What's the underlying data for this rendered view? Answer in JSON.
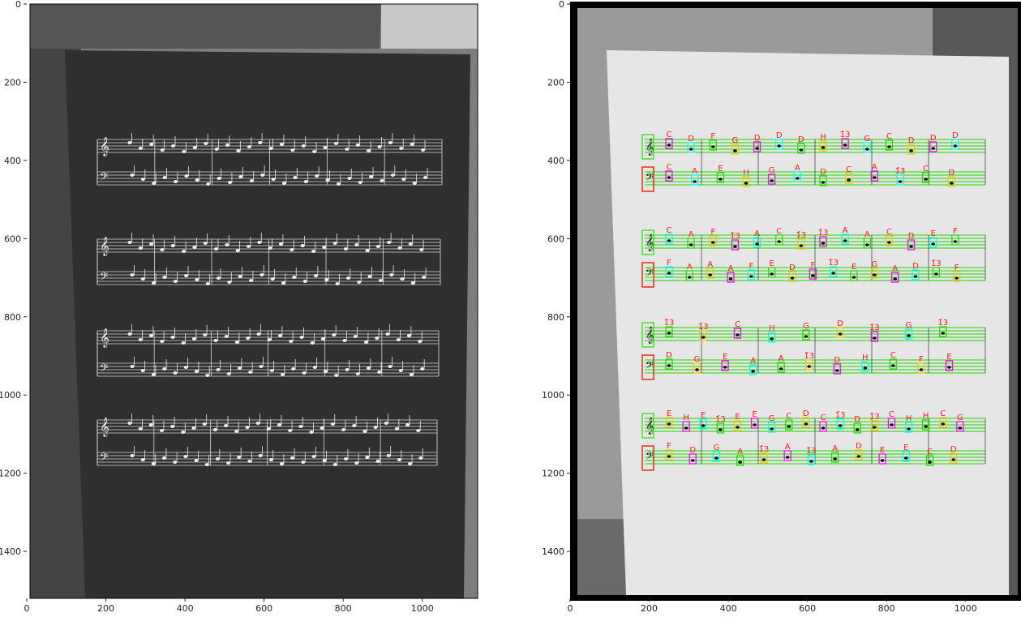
{
  "panels": [
    {
      "id": "input",
      "xticks": [
        "0",
        "200",
        "400",
        "600",
        "800",
        "1000"
      ],
      "yticks": [
        "0",
        "200",
        "400",
        "600",
        "800",
        "1000",
        "1200",
        "1400"
      ]
    },
    {
      "id": "detected",
      "xticks": [
        "0",
        "200",
        "400",
        "600",
        "800",
        "1000"
      ],
      "yticks": [
        "0",
        "200",
        "400",
        "600",
        "800",
        "1000",
        "1200",
        "1400"
      ]
    }
  ],
  "detected": {
    "systems": [
      {
        "treble": [
          "C",
          "D",
          "F",
          "G",
          "D",
          "D",
          "D",
          "H",
          "1̄3",
          "G",
          "C",
          "D",
          "D",
          "D"
        ],
        "bass": [
          "C",
          "A",
          "E",
          "H",
          "G",
          "A",
          "D",
          "C",
          "A",
          "1̄3",
          "C",
          "D"
        ]
      },
      {
        "treble": [
          "C",
          "A",
          "F",
          "1̄3",
          "A",
          "C",
          "1̄3",
          "1̄3",
          "A",
          "A",
          "C",
          "D",
          "E",
          "F"
        ],
        "bass": [
          "F",
          "A",
          "A",
          "A",
          "F",
          "E",
          "D",
          "F",
          "1̄3",
          "E",
          "G",
          "A",
          "D",
          "1̄3",
          "F"
        ]
      },
      {
        "treble": [
          "1̄3",
          "1̄3",
          "C",
          "H",
          "G",
          "D",
          "1̄3",
          "G",
          "1̄3"
        ],
        "bass": [
          "D",
          "G",
          "E",
          "A",
          "A",
          "1̄3",
          "D",
          "H",
          "C",
          "F",
          "E"
        ]
      },
      {
        "treble": [
          "E",
          "H",
          "E",
          "1̄3",
          "E",
          "E",
          "G",
          "C",
          "D",
          "C",
          "1̄3",
          "D",
          "1̄3",
          "C",
          "H",
          "H",
          "C",
          "G"
        ],
        "bass": [
          "F",
          "D",
          "G",
          "A",
          "1̄3",
          "A",
          "1̄3",
          "A",
          "D",
          "E",
          "E",
          "C",
          "D"
        ]
      }
    ]
  },
  "colors": {
    "staff_line": "#1fd400",
    "label": "#ff1a1a",
    "box_magenta": "#ff00ff",
    "box_cyan": "#00ffff",
    "box_green": "#22dd00",
    "box_yellow": "#ffc400",
    "box_blue": "#0000ee",
    "clef_red": "#ee2200"
  }
}
